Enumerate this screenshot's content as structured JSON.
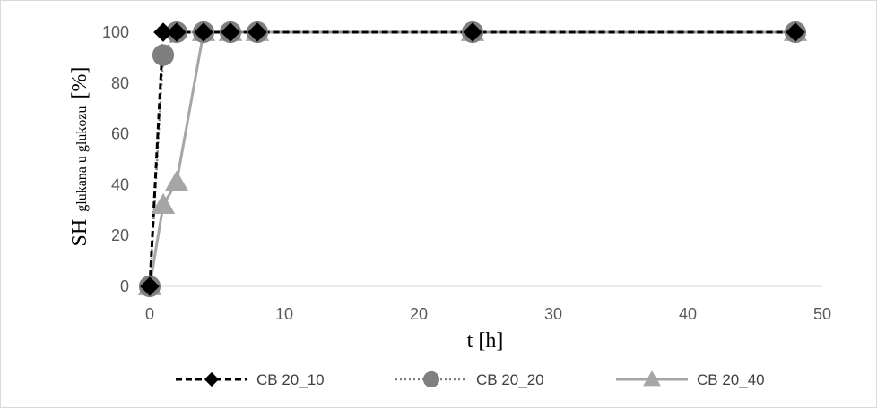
{
  "chart_data": {
    "type": "line",
    "title": "",
    "xlabel": "t [h]",
    "ylabel_main": "SH",
    "ylabel_sub": "glukana u glukozu",
    "ylabel_unit": "[%]",
    "xlim": [
      0,
      50
    ],
    "ylim": [
      0,
      100
    ],
    "xticks": [
      "0",
      "10",
      "20",
      "30",
      "40",
      "50"
    ],
    "yticks": [
      "0",
      "20",
      "40",
      "60",
      "80",
      "100"
    ],
    "grid": false,
    "legend_position": "bottom",
    "series": [
      {
        "name": "CB 20_10",
        "color": "#000000",
        "line": "dashed",
        "marker": "diamond",
        "x": [
          0,
          1,
          2,
          4,
          6,
          8,
          24,
          48
        ],
        "y": [
          0,
          100,
          100,
          100,
          100,
          100,
          100,
          100
        ]
      },
      {
        "name": "CB 20_20",
        "color": "#7f7f7f",
        "line": "dotted",
        "marker": "circle",
        "x": [
          0,
          1,
          2,
          4,
          6,
          8,
          24,
          48
        ],
        "y": [
          0,
          91,
          100,
          100,
          100,
          100,
          100,
          100
        ]
      },
      {
        "name": "CB 20_40",
        "color": "#a6a6a6",
        "line": "solid",
        "marker": "triangle",
        "x": [
          0,
          1,
          2,
          4,
          6,
          8,
          24,
          48
        ],
        "y": [
          0,
          32,
          41,
          100,
          100,
          100,
          100,
          100
        ]
      }
    ]
  }
}
